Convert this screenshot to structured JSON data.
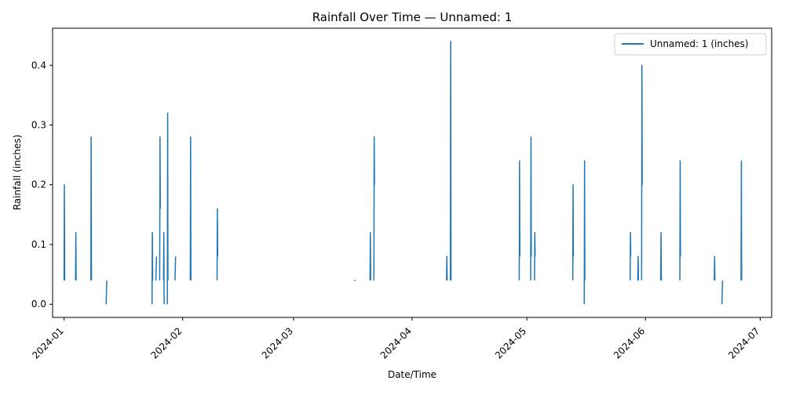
{
  "chart_data": {
    "type": "line",
    "title": "Rainfall Over Time — Unnamed: 1",
    "xlabel": "Date/Time",
    "ylabel": "Rainfall (inches)",
    "x_ticks": [
      "2024-01",
      "2024-02",
      "2024-03",
      "2024-04",
      "2024-05",
      "2024-06",
      "2024-07"
    ],
    "y_ticks": [
      "0.0",
      "0.1",
      "0.2",
      "0.3",
      "0.4"
    ],
    "xlim": [
      "2023-12-29",
      "2024-07-04"
    ],
    "ylim": [
      -0.022,
      0.462
    ],
    "grid": false,
    "legend_position": "top-right",
    "series": [
      {
        "name": "Unnamed: 1 (inches)",
        "color": "#1f77b4",
        "segments": [
          {
            "date": "2024-01-01",
            "values": [
              0.04,
              0.2,
              0.04
            ]
          },
          {
            "date": "2024-01-04",
            "values": [
              0.04,
              0.12,
              0.04
            ]
          },
          {
            "date": "2024-01-08",
            "values": [
              0.04,
              0.28,
              0.04
            ]
          },
          {
            "date": "2024-01-12",
            "values": [
              0.0,
              0.04
            ]
          },
          {
            "date": "2024-01-24",
            "values": [
              0.0,
              0.12,
              0.04
            ]
          },
          {
            "date": "2024-01-25",
            "values": [
              0.04,
              0.08
            ]
          },
          {
            "date": "2024-01-26",
            "values": [
              0.04,
              0.28,
              0.16
            ]
          },
          {
            "date": "2024-01-27",
            "values": [
              0.04,
              0.12,
              0.0
            ]
          },
          {
            "date": "2024-01-28",
            "values": [
              0.0,
              0.32,
              0.04
            ]
          },
          {
            "date": "2024-01-30",
            "values": [
              0.04,
              0.08
            ]
          },
          {
            "date": "2024-02-03",
            "values": [
              0.04,
              0.28,
              0.04
            ]
          },
          {
            "date": "2024-02-10",
            "values": [
              0.04,
              0.16,
              0.08
            ]
          },
          {
            "date": "2024-03-17",
            "values": [
              0.04
            ]
          },
          {
            "date": "2024-03-21",
            "values": [
              0.04,
              0.12,
              0.04
            ]
          },
          {
            "date": "2024-03-22",
            "values": [
              0.04,
              0.28,
              0.2
            ]
          },
          {
            "date": "2024-04-10",
            "values": [
              0.04,
              0.08,
              0.04
            ]
          },
          {
            "date": "2024-04-11",
            "values": [
              0.04,
              0.44,
              0.04
            ]
          },
          {
            "date": "2024-04-29",
            "values": [
              0.04,
              0.24,
              0.08
            ]
          },
          {
            "date": "2024-05-02",
            "values": [
              0.04,
              0.28,
              0.08
            ]
          },
          {
            "date": "2024-05-03",
            "values": [
              0.04,
              0.12,
              0.08
            ]
          },
          {
            "date": "2024-05-13",
            "values": [
              0.04,
              0.2,
              0.08
            ]
          },
          {
            "date": "2024-05-16",
            "values": [
              0.0,
              0.24,
              0.04
            ]
          },
          {
            "date": "2024-05-28",
            "values": [
              0.04,
              0.12,
              0.08
            ]
          },
          {
            "date": "2024-05-30",
            "values": [
              0.04,
              0.08,
              0.04
            ]
          },
          {
            "date": "2024-05-31",
            "values": [
              0.04,
              0.4,
              0.2
            ]
          },
          {
            "date": "2024-06-05",
            "values": [
              0.04,
              0.12,
              0.04
            ]
          },
          {
            "date": "2024-06-10",
            "values": [
              0.04,
              0.24,
              0.08
            ]
          },
          {
            "date": "2024-06-19",
            "values": [
              0.04,
              0.08,
              0.04
            ]
          },
          {
            "date": "2024-06-21",
            "values": [
              0.0,
              0.04
            ]
          },
          {
            "date": "2024-06-26",
            "values": [
              0.04,
              0.24,
              0.04
            ]
          }
        ]
      }
    ]
  }
}
